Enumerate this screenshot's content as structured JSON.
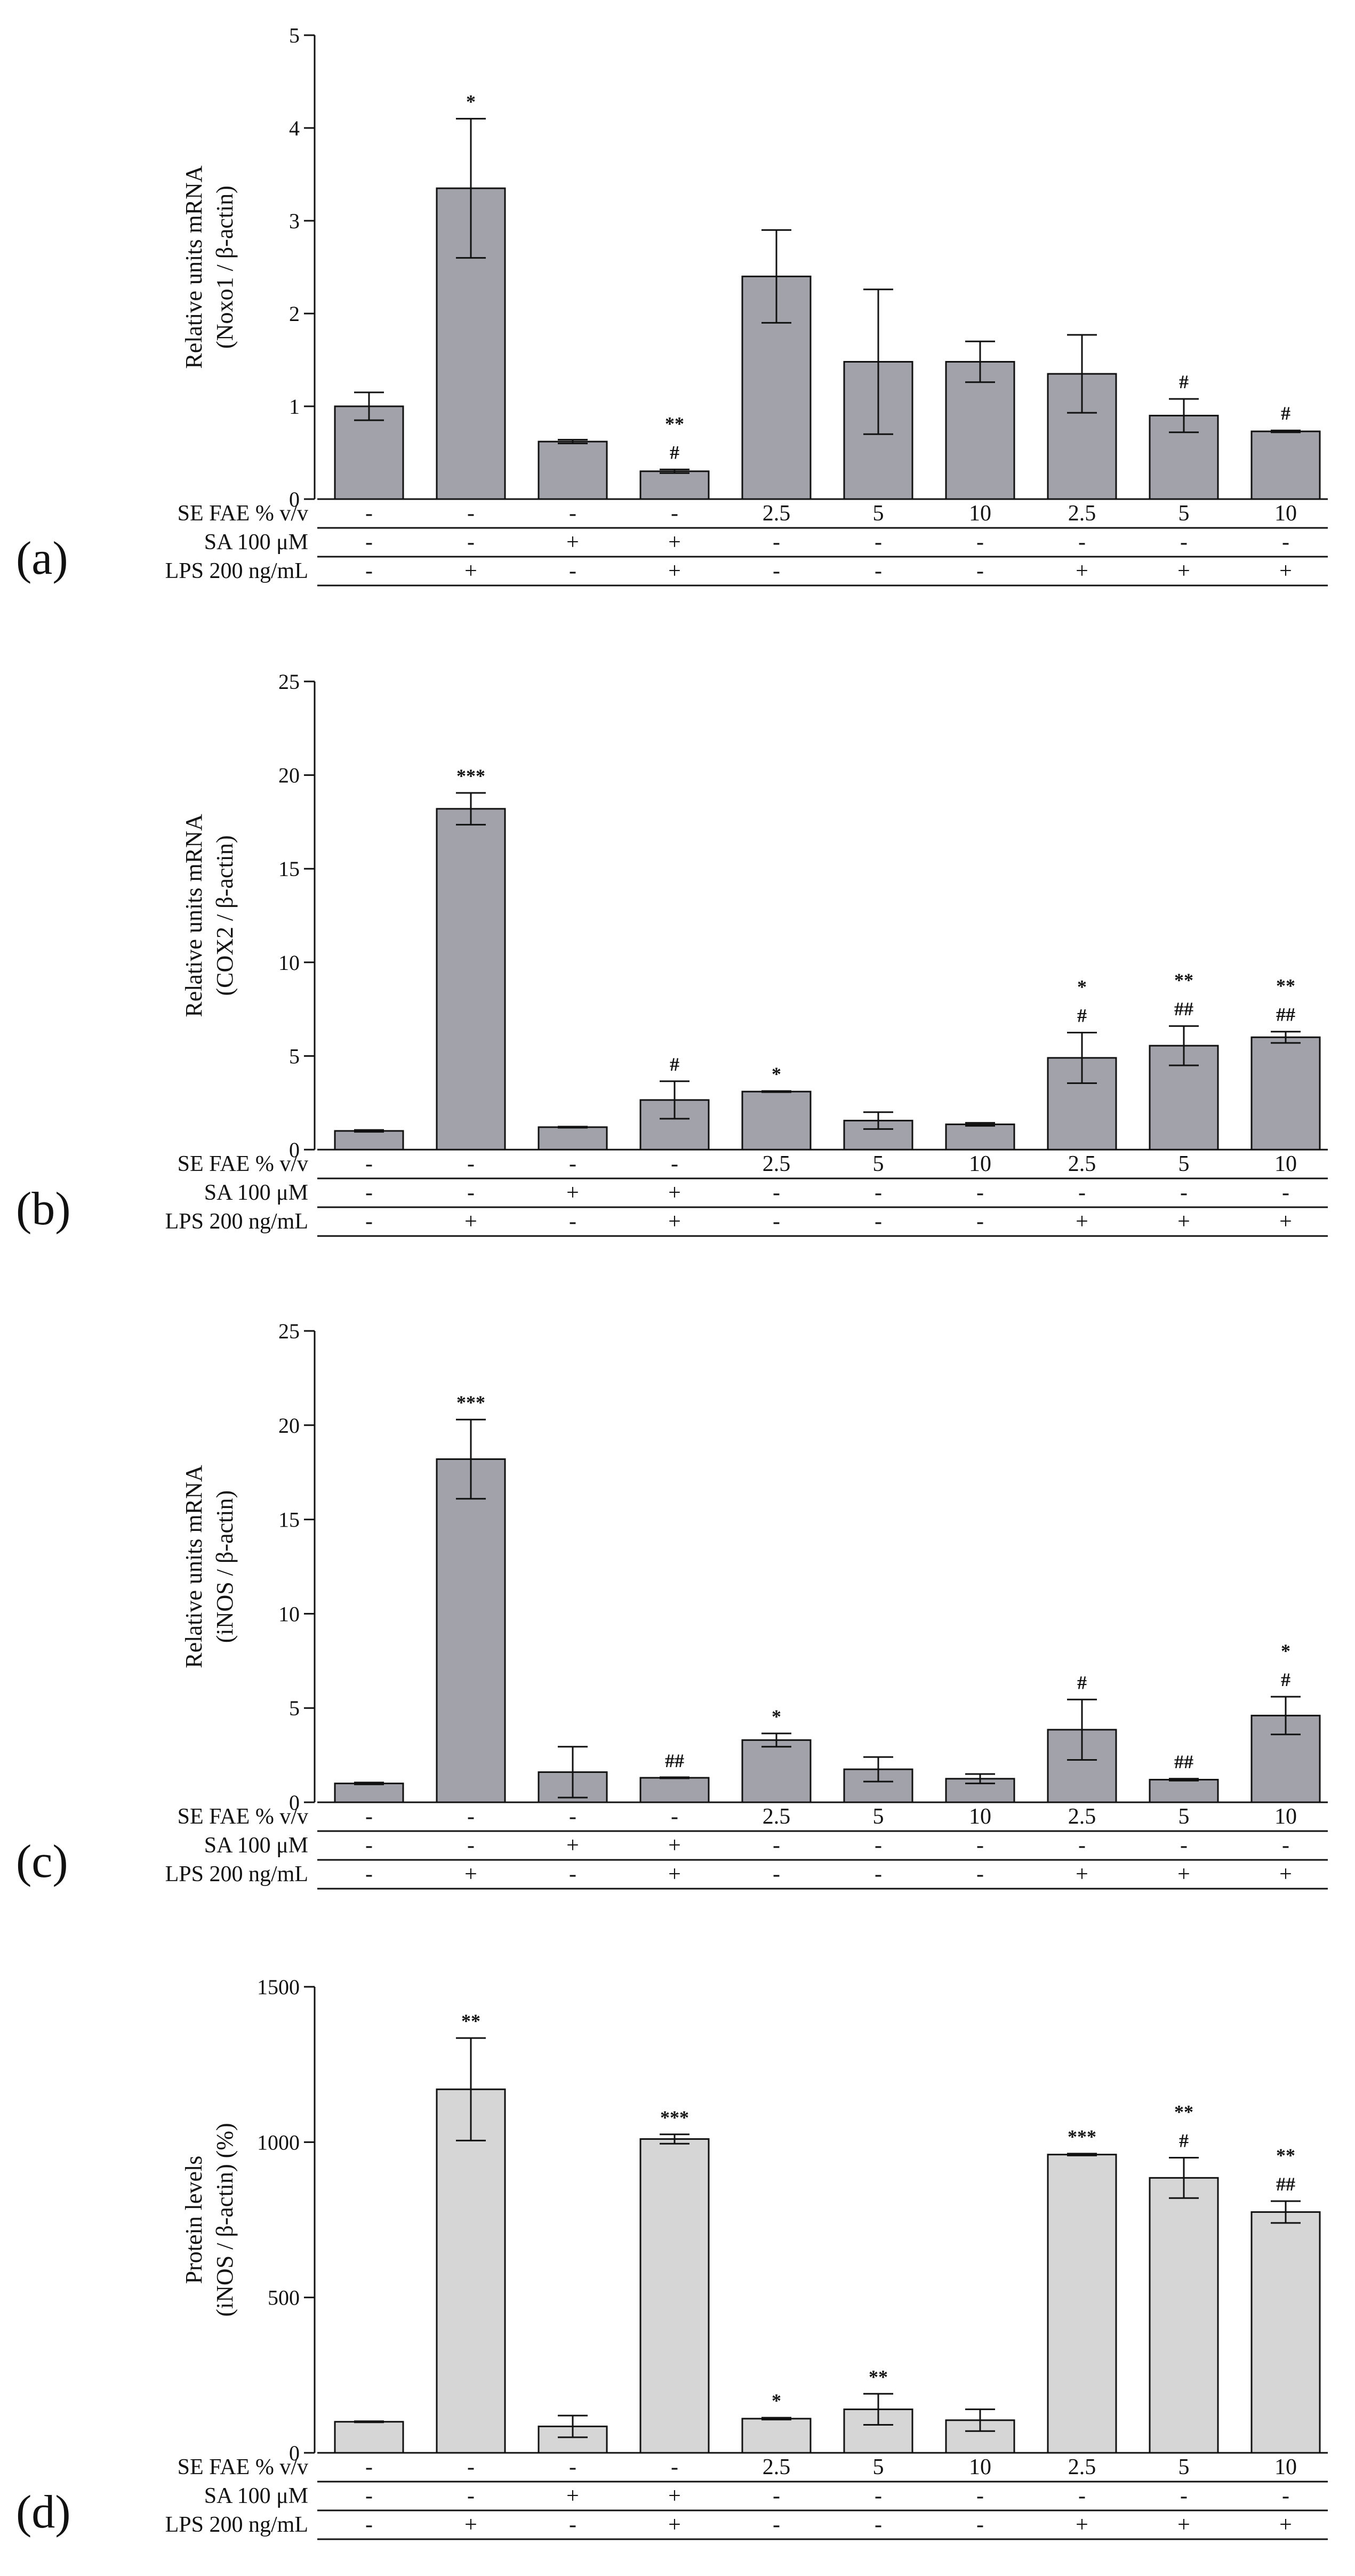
{
  "colors": {
    "bar_dark": "#a2a2aa",
    "bar_light": "#d6d6d6",
    "stroke": "#111111"
  },
  "row_labels": [
    "SE FAE % v/v",
    "SA 100 μM",
    "LPS 200 ng/mL"
  ],
  "conditions": {
    "se_fae": [
      "-",
      "-",
      "-",
      "-",
      "2.5",
      "5",
      "10",
      "2.5",
      "5",
      "10"
    ],
    "sa": [
      "-",
      "-",
      "+",
      "+",
      "-",
      "-",
      "-",
      "-",
      "-",
      "-"
    ],
    "lps": [
      "-",
      "+",
      "-",
      "+",
      "-",
      "-",
      "-",
      "+",
      "+",
      "+"
    ]
  },
  "chart_data": [
    {
      "type": "bar",
      "panel": "(a)",
      "ylabel_line1": "Relative units mRNA",
      "ylabel_line2": "(Noxo1 / β-actin)",
      "ylim": [
        0,
        5
      ],
      "yticks": [
        0,
        1,
        2,
        3,
        4,
        5
      ],
      "ytick_labels": [
        "0",
        "1",
        "2",
        "3",
        "4",
        "5"
      ],
      "bar_color": "#a2a2aa",
      "values": [
        1.0,
        3.35,
        0.62,
        0.3,
        2.4,
        1.48,
        1.48,
        1.35,
        0.9,
        0.73
      ],
      "errors": [
        0.15,
        0.75,
        0.02,
        0.02,
        0.5,
        0.78,
        0.22,
        0.42,
        0.18,
        0.01
      ],
      "annotations": [
        [],
        [
          "*"
        ],
        [],
        [
          "**",
          "#"
        ],
        [],
        [],
        [],
        [],
        [
          "#"
        ],
        [
          "#"
        ]
      ]
    },
    {
      "type": "bar",
      "panel": "(b)",
      "ylabel_line1": "Relative units mRNA",
      "ylabel_line2": "(COX2 / β-actin)",
      "ylim": [
        0,
        25
      ],
      "yticks": [
        0,
        5,
        10,
        15,
        20,
        25
      ],
      "ytick_labels": [
        "0",
        "5",
        "10",
        "15",
        "20",
        "25"
      ],
      "bar_color": "#a2a2aa",
      "values": [
        1.0,
        18.2,
        1.2,
        2.65,
        3.1,
        1.55,
        1.35,
        4.9,
        5.55,
        6.0
      ],
      "errors": [
        0.05,
        0.85,
        0.0,
        1.0,
        0.03,
        0.45,
        0.08,
        1.35,
        1.05,
        0.3
      ],
      "annotations": [
        [],
        [
          "***"
        ],
        [],
        [
          "#"
        ],
        [
          "*"
        ],
        [],
        [],
        [
          "*",
          "#"
        ],
        [
          "**",
          "##"
        ],
        [
          "**",
          "##"
        ]
      ]
    },
    {
      "type": "bar",
      "panel": "(c)",
      "ylabel_line1": "Relative units mRNA",
      "ylabel_line2": "(iNOS / β-actin)",
      "ylim": [
        0,
        25
      ],
      "yticks": [
        0,
        5,
        10,
        15,
        20,
        25
      ],
      "ytick_labels": [
        "0",
        "5",
        "10",
        "15",
        "20",
        "25"
      ],
      "bar_color": "#a2a2aa",
      "values": [
        1.0,
        18.2,
        1.6,
        1.3,
        3.3,
        1.75,
        1.25,
        3.85,
        1.2,
        4.6
      ],
      "errors": [
        0.05,
        2.1,
        1.35,
        0.0,
        0.35,
        0.65,
        0.25,
        1.6,
        0.05,
        1.0
      ],
      "annotations": [
        [],
        [
          "***"
        ],
        [],
        [
          "##"
        ],
        [
          "*"
        ],
        [],
        [],
        [
          "#"
        ],
        [
          "##"
        ],
        [
          "*",
          "#"
        ]
      ]
    },
    {
      "type": "bar",
      "panel": "(d)",
      "ylabel_line1": "Protein levels",
      "ylabel_line2": "(iNOS / β-actin) (%)",
      "ylim": [
        0,
        1500
      ],
      "yticks": [
        0,
        500,
        1000,
        1500
      ],
      "ytick_labels": [
        "0",
        "500",
        "1000",
        "1500"
      ],
      "bar_color": "#d6d6d6",
      "values": [
        100,
        1170,
        85,
        1010,
        110,
        140,
        105,
        960,
        885,
        775
      ],
      "errors": [
        0,
        165,
        35,
        15,
        3,
        50,
        35,
        3,
        65,
        35
      ],
      "annotations": [
        [],
        [
          "**"
        ],
        [],
        [
          "***"
        ],
        [
          "*"
        ],
        [
          "**"
        ],
        [],
        [
          "***"
        ],
        [
          "**",
          "#"
        ],
        [
          "**",
          "##"
        ]
      ]
    }
  ]
}
